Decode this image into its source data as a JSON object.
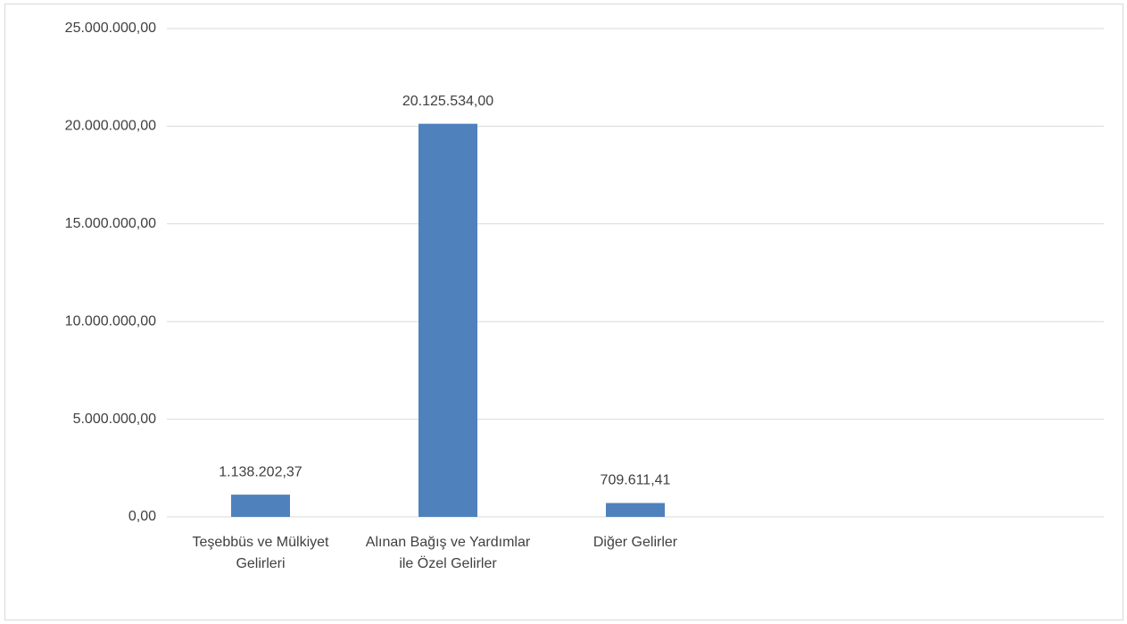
{
  "chart_data": {
    "type": "bar",
    "categories": [
      "Teşebbüs ve Mülkiyet Gelirleri",
      "Alınan Bağış ve Yardımlar ile Özel Gelirler",
      "Diğer Gelirler",
      null,
      null
    ],
    "values": [
      1138202.37,
      20125534.0,
      709611.41,
      null,
      null
    ],
    "value_labels": [
      "1.138.202,37",
      "20.125.534,00",
      "709.611,41",
      null,
      null
    ],
    "color": "#4f81bd",
    "ylim": [
      0,
      25000000
    ],
    "yticks": [
      {
        "value": 0,
        "label": "0,00"
      },
      {
        "value": 5000000,
        "label": "5.000.000,00"
      },
      {
        "value": 10000000,
        "label": "10.000.000,00"
      },
      {
        "value": 15000000,
        "label": "15.000.000,00"
      },
      {
        "value": 20000000,
        "label": "20.000.000,00"
      },
      {
        "value": 25000000,
        "label": "25.000.000,00"
      }
    ],
    "grid": true
  }
}
